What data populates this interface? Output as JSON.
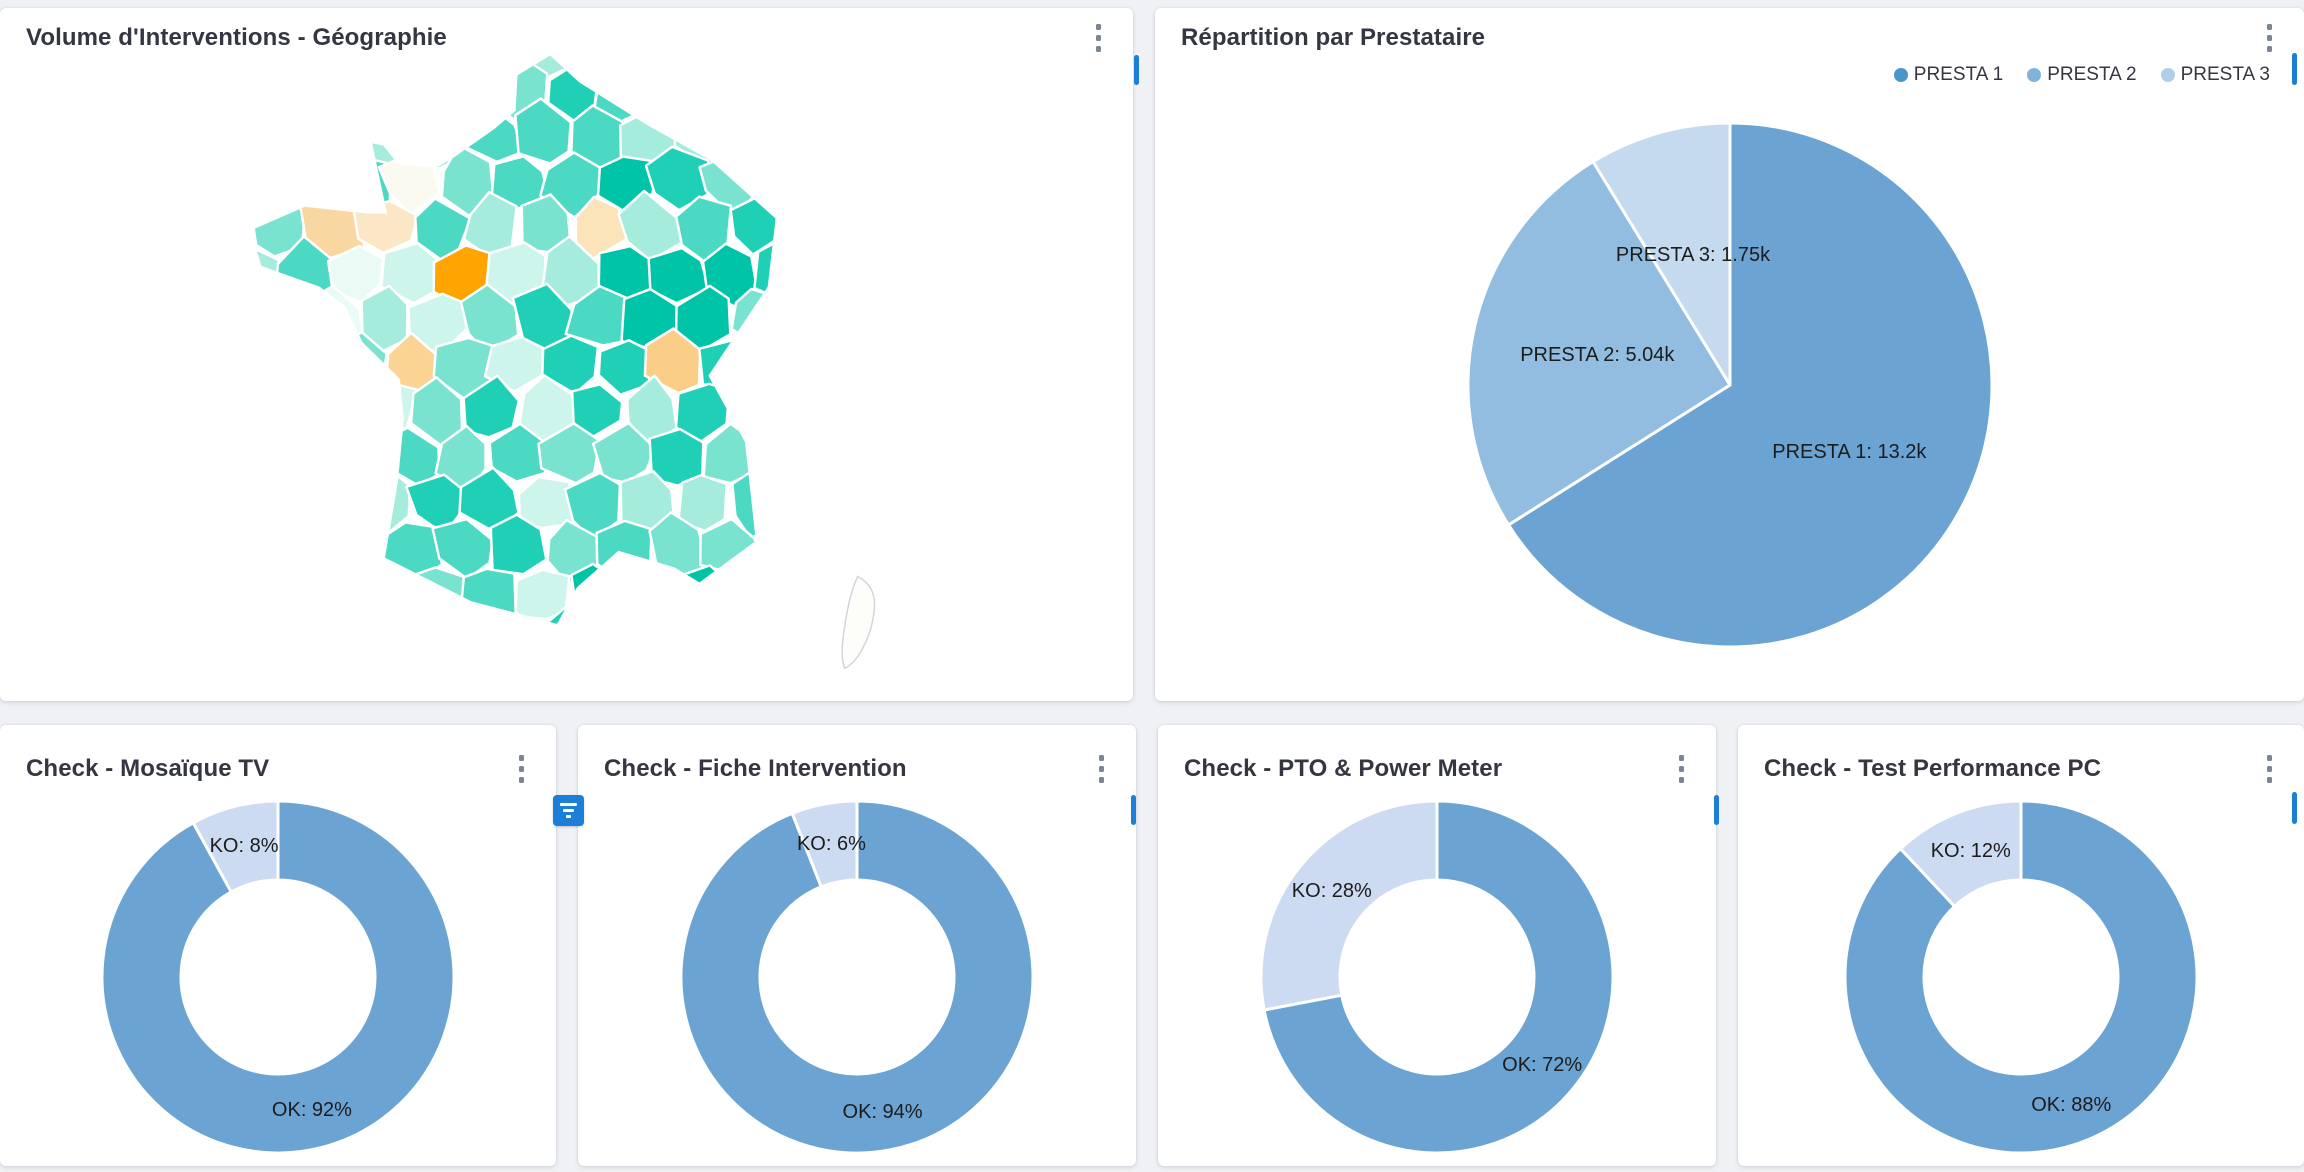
{
  "panels": {
    "geo": {
      "title": "Volume d'Interventions - Géographie"
    },
    "presta": {
      "title": "Répartition par Prestataire",
      "legend": [
        {
          "label": "PRESTA 1",
          "color": "#4b96c9"
        },
        {
          "label": "PRESTA 2",
          "color": "#7fb3da"
        },
        {
          "label": "PRESTA 3",
          "color": "#adcfe9"
        }
      ]
    },
    "checks": [
      {
        "title": "Check - Mosaïque TV"
      },
      {
        "title": "Check - Fiche Intervention"
      },
      {
        "title": "Check - PTO & Power Meter"
      },
      {
        "title": "Check - Test Performance PC"
      }
    ]
  },
  "chart_data": [
    {
      "id": "map-geo",
      "type": "choropleth",
      "title": "Volume d'Interventions - Géographie",
      "region": "France métropolitaine - départements",
      "palette": [
        "#eafbf6",
        "#cdf5ec",
        "#a5ecdd",
        "#79e3d0",
        "#4cd9c3",
        "#1fd0b7",
        "#00c4a8"
      ],
      "border_color": "#ffffff",
      "highlights": [
        {
          "x": 482,
          "y": 258,
          "color": "#ffa400"
        },
        {
          "x": 338,
          "y": 230,
          "color": "#f9d7a0"
        },
        {
          "x": 398,
          "y": 252,
          "color": "#fbe7c6"
        },
        {
          "x": 603,
          "y": 218,
          "color": "#fbe4b9"
        },
        {
          "x": 676,
          "y": 350,
          "color": "#fbce87"
        },
        {
          "x": 408,
          "y": 344,
          "color": "#fbd494"
        },
        {
          "x": 388,
          "y": 186,
          "color": "#fbfaf1"
        }
      ]
    },
    {
      "id": "pie-presta",
      "type": "pie",
      "title": "Répartition par Prestataire",
      "legend_position": "top-right",
      "series": [
        {
          "name": "PRESTA 1",
          "value": 13200,
          "label": "PRESTA 1: 13.2k",
          "color": "#6ba3d2"
        },
        {
          "name": "PRESTA 2",
          "value": 5040,
          "label": "PRESTA 2: 5.04k",
          "color": "#92bde0"
        },
        {
          "name": "PRESTA 3",
          "value": 1750,
          "label": "PRESTA 3: 1.75k",
          "color": "#c5daee"
        }
      ]
    },
    {
      "id": "donut-0",
      "type": "donut",
      "title": "Check - Mosaïque TV",
      "series": [
        {
          "name": "OK",
          "value": 92,
          "label": "OK: 92%",
          "color": "#6ba3d2"
        },
        {
          "name": "KO",
          "value": 8,
          "label": "KO: 8%",
          "color": "#ccdbf2"
        }
      ]
    },
    {
      "id": "donut-1",
      "type": "donut",
      "title": "Check - Fiche Intervention",
      "series": [
        {
          "name": "OK",
          "value": 94,
          "label": "OK: 94%",
          "color": "#6ba3d2"
        },
        {
          "name": "KO",
          "value": 6,
          "label": "KO: 6%",
          "color": "#ccdbf2"
        }
      ]
    },
    {
      "id": "donut-2",
      "type": "donut",
      "title": "Check - PTO & Power Meter",
      "series": [
        {
          "name": "OK",
          "value": 72,
          "label": "OK: 72%",
          "color": "#6ba3d2"
        },
        {
          "name": "KO",
          "value": 28,
          "label": "KO: 28%",
          "color": "#ccdbf2"
        }
      ]
    },
    {
      "id": "donut-3",
      "type": "donut",
      "title": "Check - Test Performance PC",
      "series": [
        {
          "name": "OK",
          "value": 88,
          "label": "OK: 88%",
          "color": "#6ba3d2"
        },
        {
          "name": "KO",
          "value": 12,
          "label": "KO: 12%",
          "color": "#ccdbf2"
        }
      ]
    }
  ],
  "accents": {
    "scrollbar_blue": "#1c7ed6",
    "filter_button_blue": "#1c7ed6"
  }
}
